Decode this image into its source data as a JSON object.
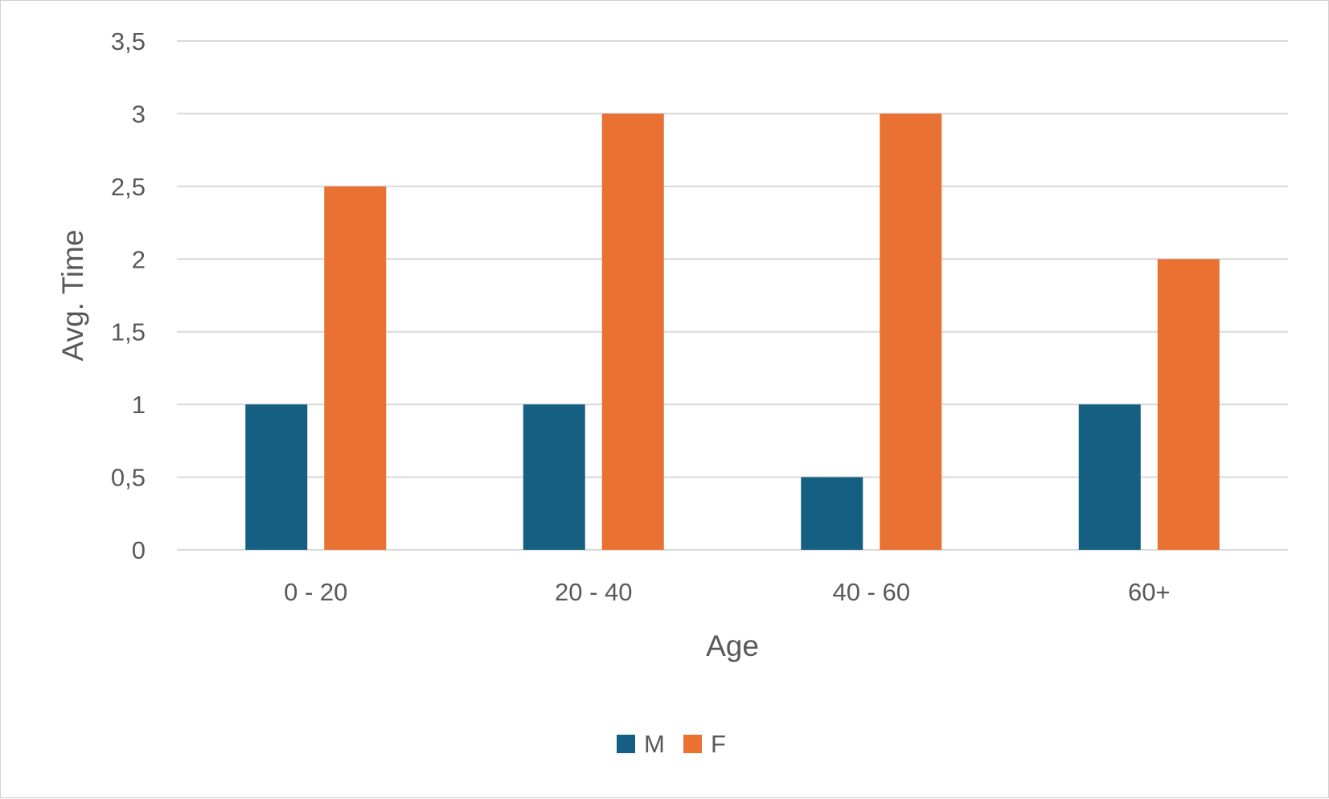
{
  "chart_data": {
    "type": "bar",
    "title": "",
    "xlabel": "Age",
    "ylabel": "Avg. Time",
    "categories": [
      "0 - 20",
      "20 - 40",
      "40 - 60",
      "60+"
    ],
    "series": [
      {
        "name": "M",
        "values": [
          1,
          1,
          0.5,
          1
        ],
        "color": "#156082"
      },
      {
        "name": "F",
        "values": [
          2.5,
          3,
          3,
          2
        ],
        "color": "#E97132"
      }
    ],
    "ylim": [
      0,
      3.5
    ],
    "yticks": [
      0,
      0.5,
      1,
      1.5,
      2,
      2.5,
      3,
      3.5
    ],
    "ytick_labels": [
      "0",
      "0,5",
      "1",
      "1,5",
      "2",
      "2,5",
      "3",
      "3,5"
    ],
    "grid": true,
    "legend_position": "bottom"
  }
}
